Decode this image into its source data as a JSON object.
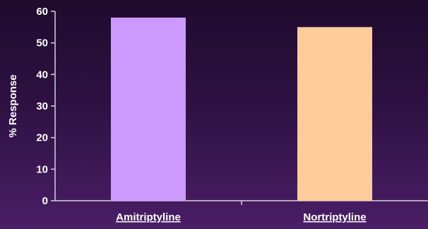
{
  "chart_data": {
    "type": "bar",
    "title": "",
    "xlabel": "",
    "ylabel": "% Response",
    "categories": [
      "Amitriptyline",
      "Nortriptyline"
    ],
    "values": [
      58,
      55
    ],
    "colors": [
      "#cc99ff",
      "#ffcc99"
    ],
    "ylim": [
      0,
      60
    ],
    "yticks": [
      0,
      10,
      20,
      30,
      40,
      50,
      60
    ],
    "grid": false,
    "legend": "none",
    "axis_color": "#d8d0e0"
  }
}
